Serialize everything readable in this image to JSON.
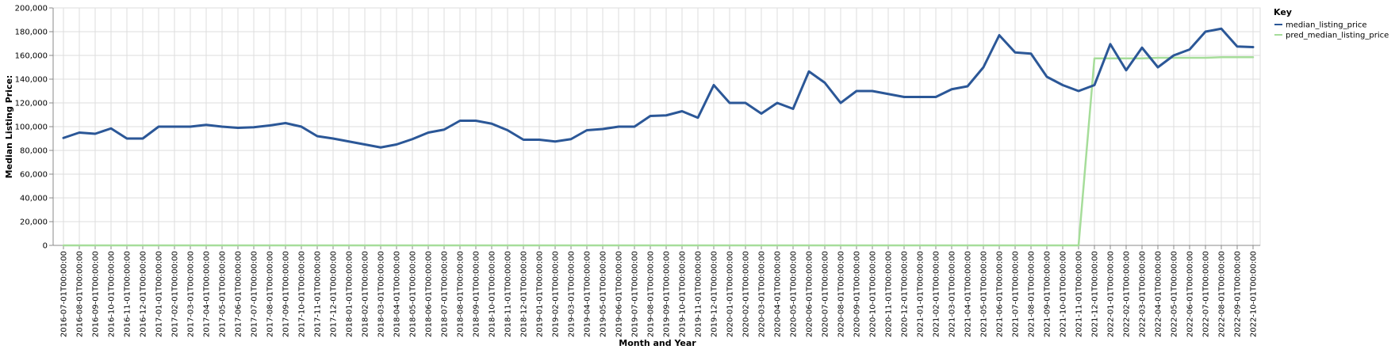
{
  "chart_data": {
    "type": "line",
    "xlabel": "Month and Year",
    "ylabel": "Median Listing Price:",
    "ylim": [
      0,
      200000
    ],
    "yticks": [
      "0",
      "20,000",
      "40,000",
      "60,000",
      "80,000",
      "100,000",
      "120,000",
      "140,000",
      "160,000",
      "180,000",
      "200,000"
    ],
    "grid": true,
    "legend": {
      "title": "Key",
      "placement": "top-right"
    },
    "categories": [
      "2016-07-01T00:00:00",
      "2016-08-01T00:00:00",
      "2016-09-01T00:00:00",
      "2016-10-01T00:00:00",
      "2016-11-01T00:00:00",
      "2016-12-01T00:00:00",
      "2017-01-01T00:00:00",
      "2017-02-01T00:00:00",
      "2017-03-01T00:00:00",
      "2017-04-01T00:00:00",
      "2017-05-01T00:00:00",
      "2017-06-01T00:00:00",
      "2017-07-01T00:00:00",
      "2017-08-01T00:00:00",
      "2017-09-01T00:00:00",
      "2017-10-01T00:00:00",
      "2017-11-01T00:00:00",
      "2017-12-01T00:00:00",
      "2018-01-01T00:00:00",
      "2018-02-01T00:00:00",
      "2018-03-01T00:00:00",
      "2018-04-01T00:00:00",
      "2018-05-01T00:00:00",
      "2018-06-01T00:00:00",
      "2018-07-01T00:00:00",
      "2018-08-01T00:00:00",
      "2018-09-01T00:00:00",
      "2018-10-01T00:00:00",
      "2018-11-01T00:00:00",
      "2018-12-01T00:00:00",
      "2019-01-01T00:00:00",
      "2019-02-01T00:00:00",
      "2019-03-01T00:00:00",
      "2019-04-01T00:00:00",
      "2019-05-01T00:00:00",
      "2019-06-01T00:00:00",
      "2019-07-01T00:00:00",
      "2019-08-01T00:00:00",
      "2019-09-01T00:00:00",
      "2019-10-01T00:00:00",
      "2019-11-01T00:00:00",
      "2019-12-01T00:00:00",
      "2020-01-01T00:00:00",
      "2020-02-01T00:00:00",
      "2020-03-01T00:00:00",
      "2020-04-01T00:00:00",
      "2020-05-01T00:00:00",
      "2020-06-01T00:00:00",
      "2020-07-01T00:00:00",
      "2020-08-01T00:00:00",
      "2020-09-01T00:00:00",
      "2020-10-01T00:00:00",
      "2020-11-01T00:00:00",
      "2020-12-01T00:00:00",
      "2021-01-01T00:00:00",
      "2021-02-01T00:00:00",
      "2021-03-01T00:00:00",
      "2021-04-01T00:00:00",
      "2021-05-01T00:00:00",
      "2021-06-01T00:00:00",
      "2021-07-01T00:00:00",
      "2021-08-01T00:00:00",
      "2021-09-01T00:00:00",
      "2021-10-01T00:00:00",
      "2021-11-01T00:00:00",
      "2021-12-01T00:00:00",
      "2022-01-01T00:00:00",
      "2022-02-01T00:00:00",
      "2022-03-01T00:00:00",
      "2022-04-01T00:00:00",
      "2022-05-01T00:00:00",
      "2022-06-01T00:00:00",
      "2022-07-01T00:00:00",
      "2022-08-01T00:00:00",
      "2022-09-01T00:00:00",
      "2022-10-01T00:00:00"
    ],
    "series": [
      {
        "name": "median_listing_price",
        "color": "#2b5797",
        "values": [
          90500,
          95000,
          94000,
          98500,
          90000,
          90000,
          100000,
          100000,
          100000,
          101500,
          100000,
          99000,
          99500,
          101000,
          103000,
          100000,
          92000,
          90000,
          87500,
          85000,
          82500,
          85000,
          89500,
          95000,
          97500,
          105000,
          105000,
          102500,
          97000,
          89000,
          89000,
          87500,
          89500,
          97000,
          98000,
          100000,
          100000,
          109000,
          109500,
          113000,
          107500,
          135000,
          120000,
          120000,
          111000,
          120000,
          115000,
          146500,
          137000,
          120000,
          130000,
          130000,
          127500,
          125000,
          125000,
          125000,
          131500,
          134000,
          150000,
          177000,
          162500,
          161500,
          142000,
          135000,
          130000,
          135000,
          169500,
          147500,
          166500,
          150000,
          160000,
          165000,
          180000,
          182500,
          167500,
          167000
        ]
      },
      {
        "name": "pred_median_listing_price",
        "color": "#a6dd9a",
        "values": [
          0,
          0,
          0,
          0,
          0,
          0,
          0,
          0,
          0,
          0,
          0,
          0,
          0,
          0,
          0,
          0,
          0,
          0,
          0,
          0,
          0,
          0,
          0,
          0,
          0,
          0,
          0,
          0,
          0,
          0,
          0,
          0,
          0,
          0,
          0,
          0,
          0,
          0,
          0,
          0,
          0,
          0,
          0,
          0,
          0,
          0,
          0,
          0,
          0,
          0,
          0,
          0,
          0,
          0,
          0,
          0,
          0,
          0,
          0,
          0,
          0,
          0,
          0,
          0,
          0,
          157500,
          157500,
          157500,
          157500,
          158000,
          158000,
          158000,
          158000,
          158500,
          158500,
          158500
        ]
      }
    ]
  }
}
